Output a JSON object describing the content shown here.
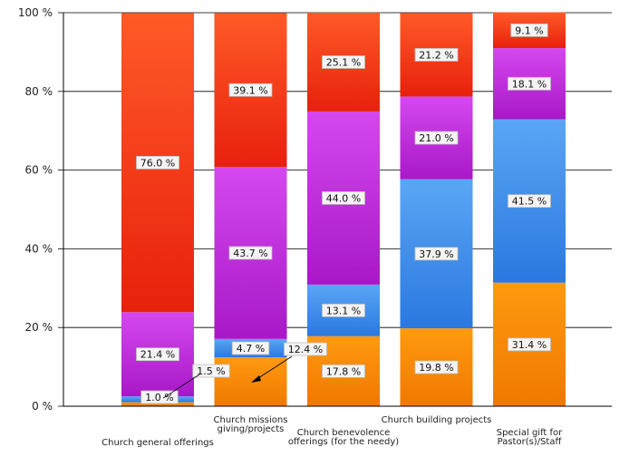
{
  "chart_data": {
    "type": "bar",
    "stacked": true,
    "normalized": true,
    "categories": [
      "Church general offerings",
      "Church missions giving/projects",
      "Church benevolence offerings (for the needy)",
      "Church building projects",
      "Special gift for Pastor(s)/Staff"
    ],
    "category_label_lines": [
      [
        "Church general offerings"
      ],
      [
        "Church missions",
        "giving/projects"
      ],
      [
        "Church benevolence",
        "offerings (for the needy)"
      ],
      [
        "Church building projects"
      ],
      [
        "Special gift for",
        "Pastor(s)/Staff"
      ]
    ],
    "series": [
      {
        "color": "#ff8c00",
        "values": [
          1.0,
          12.4,
          17.8,
          19.8,
          31.4
        ]
      },
      {
        "color": "#3d8fe8",
        "values": [
          1.5,
          4.7,
          13.1,
          37.9,
          41.5
        ]
      },
      {
        "color": "#c030d8",
        "values": [
          21.4,
          43.7,
          44.0,
          21.0,
          18.1
        ]
      },
      {
        "color": "#f03418",
        "values": [
          76.0,
          39.1,
          25.1,
          21.2,
          9.1
        ]
      }
    ],
    "data_labels": [
      [
        "1.0 %",
        "12.4 %",
        "17.8 %",
        "19.8 %",
        "31.4 %"
      ],
      [
        "1.5 %",
        "4.7 %",
        "13.1 %",
        "37.9 %",
        "41.5 %"
      ],
      [
        "21.4 %",
        "43.7 %",
        "44.0 %",
        "21.0 %",
        "18.1 %"
      ],
      [
        "76.0 %",
        "39.1 %",
        "25.1 %",
        "21.2 %",
        "9.1 %"
      ]
    ],
    "y_ticks": [
      0,
      20,
      40,
      60,
      80,
      100
    ],
    "y_tick_labels": [
      "0 %",
      "20 %",
      "40 %",
      "60 %",
      "80 %",
      "100 %"
    ],
    "ylim": [
      0,
      100
    ],
    "grid": true,
    "legend": "none"
  }
}
